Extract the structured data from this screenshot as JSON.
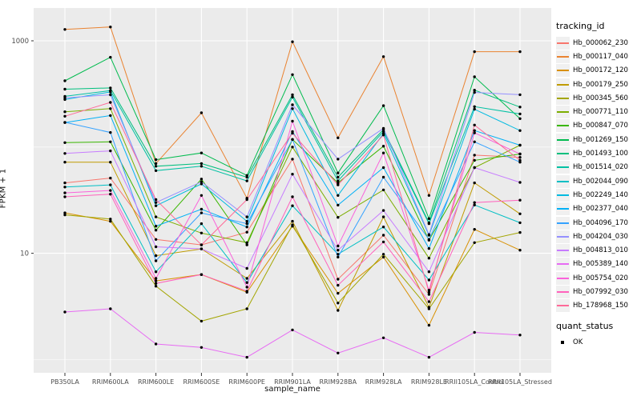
{
  "figure": {
    "ylabel": "FPKM + 1",
    "xlabel": "sample_name"
  },
  "legend": {
    "title": "tracking_id",
    "quant_title": "quant_status",
    "quant_items": [
      {
        "label": "OK",
        "marker": "black-square"
      }
    ]
  },
  "chart_data": {
    "type": "line",
    "title": "",
    "xlabel": "sample_name",
    "ylabel": "FPKM + 1",
    "y_scale": "log10",
    "grid": true,
    "legend_position": "right",
    "panel_bg": "#EBEBEB",
    "grid_color": "#FFFFFF",
    "point_color": "#000000",
    "axis_text_color": "#4D4D4D",
    "y_major_ticks": [
      {
        "label": "1000",
        "value": 1000
      },
      {
        "label": "10",
        "value": 10
      }
    ],
    "y_minor_gridlines": [
      100,
      1
    ],
    "ylim": [
      0.9,
      1900
    ],
    "categories": [
      "PB350LA",
      "RRIM600LA",
      "RRIM600LE",
      "RRIM600SE",
      "RRIM600PE",
      "RRIM901LA",
      "RRIM928BA",
      "RRIM928LA",
      "RRIM928LE",
      "RRII105LA_Control",
      "RRII105LA_Stressed"
    ],
    "quant_status": "OK",
    "series": [
      {
        "name": "Hb_000062_230",
        "color": "#F8766D",
        "values": [
          46,
          51,
          13.5,
          12,
          15.8,
          77,
          5.7,
          14.8,
          4.1,
          84,
          80
        ]
      },
      {
        "name": "Hb_000117_040",
        "color": "#EA8331",
        "values": [
          1280,
          1350,
          70,
          210,
          33,
          980,
          122,
          710,
          35,
          790,
          790
        ]
      },
      {
        "name": "Hb_000172_120",
        "color": "#D89000",
        "values": [
          24,
          20,
          5.5,
          6.3,
          4.3,
          18,
          4.2,
          9.2,
          2.1,
          16.8,
          10.7
        ]
      },
      {
        "name": "Hb_000179_250",
        "color": "#C09B00",
        "values": [
          72,
          72,
          9.5,
          11,
          5.8,
          20,
          2.9,
          22,
          3.1,
          46,
          23.5
        ]
      },
      {
        "name": "Hb_000345_560",
        "color": "#A3A500",
        "values": [
          23,
          21,
          4.9,
          2.3,
          3.0,
          18.5,
          3.4,
          9.8,
          3.0,
          12.6,
          15.7
        ]
      },
      {
        "name": "Hb_000771_110",
        "color": "#7CAE00",
        "values": [
          215,
          230,
          22,
          15.5,
          12.6,
          100,
          21.8,
          39.5,
          9.0,
          64,
          104
        ]
      },
      {
        "name": "Hb_000847_070",
        "color": "#39B600",
        "values": [
          110,
          112,
          16.5,
          50,
          12.0,
          118,
          46,
          102,
          13.3,
          75,
          86
        ]
      },
      {
        "name": "Hb_001269_150",
        "color": "#00BB4E",
        "values": [
          420,
          700,
          76,
          88,
          54,
          480,
          57,
          245,
          21.2,
          458,
          185
        ]
      },
      {
        "name": "Hb_001493_100",
        "color": "#00BF7D",
        "values": [
          350,
          360,
          66,
          70,
          52,
          310,
          52,
          146,
          19.4,
          343,
          238
        ]
      },
      {
        "name": "Hb_001514_020",
        "color": "#00C1A3",
        "values": [
          300,
          340,
          60,
          66,
          48,
          295,
          48,
          140,
          19,
          240,
          205
        ]
      },
      {
        "name": "Hb_002044_090",
        "color": "#00BFC4",
        "values": [
          42,
          44,
          6.7,
          19,
          5.3,
          28,
          9.8,
          17.7,
          5.6,
          28.5,
          19.4
        ]
      },
      {
        "name": "Hb_002249_140",
        "color": "#00BAE0",
        "values": [
          280,
          330,
          28,
          45,
          20,
          230,
          35,
          134,
          14.8,
          227,
          143
        ]
      },
      {
        "name": "Hb_002377_040",
        "color": "#00B0F6",
        "values": [
          170,
          198,
          18,
          26,
          17.7,
          140,
          28.4,
          64,
          11.1,
          143,
          104
        ]
      },
      {
        "name": "Hb_004096_170",
        "color": "#35A2FF",
        "values": [
          171,
          137,
          8.5,
          24,
          19,
          118,
          9.2,
          52,
          13.5,
          112,
          72
        ]
      },
      {
        "name": "Hb_004204_030",
        "color": "#9590FF",
        "values": [
          290,
          310,
          30,
          47,
          22,
          250,
          77,
          150,
          15,
          327,
          311
        ]
      },
      {
        "name": "Hb_004813_010",
        "color": "#C77CFF",
        "values": [
          87,
          92,
          11.5,
          11,
          7.2,
          55.6,
          10.7,
          25.3,
          6.7,
          64,
          46.5
        ]
      },
      {
        "name": "Hb_005389_140",
        "color": "#E76BF3",
        "values": [
          2.8,
          3.0,
          1.4,
          1.3,
          1.05,
          1.9,
          1.15,
          1.6,
          1.05,
          1.8,
          1.7
        ]
      },
      {
        "name": "Hb_005754_020",
        "color": "#FA62DB",
        "values": [
          37,
          39,
          5.8,
          35,
          4.8,
          175,
          11.7,
          88,
          4.5,
          136,
          86
        ]
      },
      {
        "name": "Hb_007992_030",
        "color": "#FF62BC",
        "values": [
          34,
          36,
          5.2,
          6.3,
          4.4,
          34,
          5.0,
          12.8,
          3.5,
          30,
          31.6
        ]
      },
      {
        "name": "Hb_178968_150",
        "color": "#FF6A98",
        "values": [
          195,
          263,
          32,
          12,
          32,
          135,
          44,
          130,
          4.3,
          161,
          75
        ]
      }
    ]
  }
}
